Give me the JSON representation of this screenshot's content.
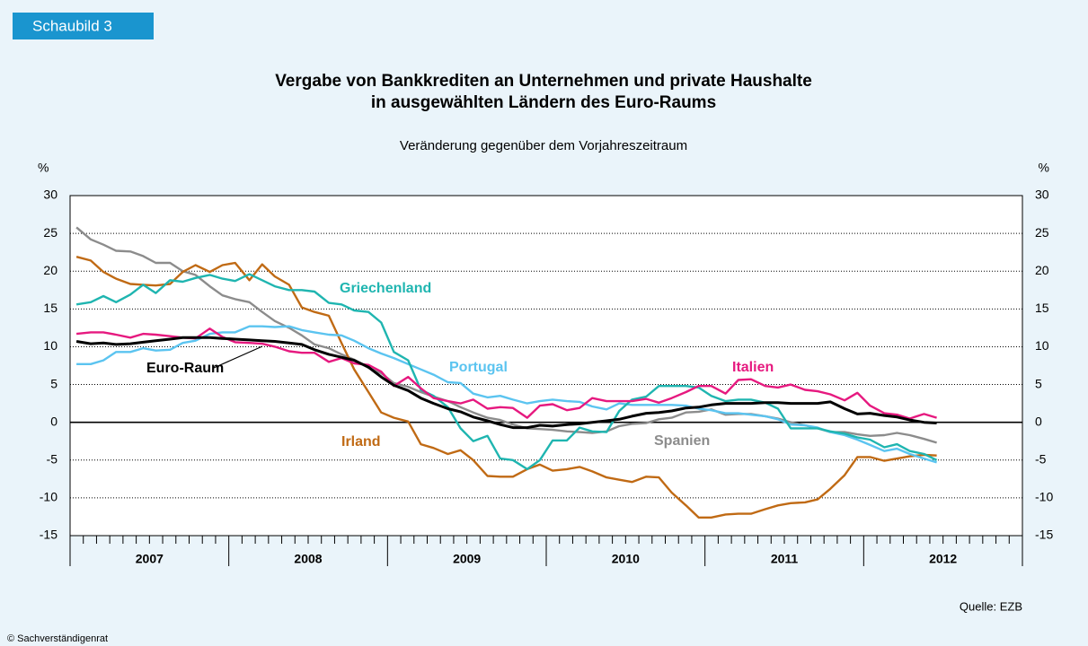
{
  "badge": "Schaubild 3",
  "chart_data": {
    "type": "line",
    "title": [
      "Vergabe von Bankkrediten an Unternehmen und private Haushalte",
      "in ausgewählten Ländern des Euro-Raums"
    ],
    "subtitle": "Veränderung gegenüber dem Vorjahreszeitraum",
    "ylabel": "%",
    "y2label": "%",
    "x": [
      2007.04,
      2007.13,
      2007.21,
      2007.29,
      2007.38,
      2007.46,
      2007.54,
      2007.63,
      2007.71,
      2007.79,
      2007.88,
      2007.96,
      2008.04,
      2008.13,
      2008.21,
      2008.29,
      2008.38,
      2008.46,
      2008.54,
      2008.63,
      2008.71,
      2008.79,
      2008.88,
      2008.96,
      2009.04,
      2009.13,
      2009.21,
      2009.29,
      2009.38,
      2009.46,
      2009.54,
      2009.63,
      2009.71,
      2009.79,
      2009.88,
      2009.96,
      2010.04,
      2010.13,
      2010.21,
      2010.29,
      2010.38,
      2010.46,
      2010.54,
      2010.63,
      2010.71,
      2010.79,
      2010.88,
      2010.96,
      2011.04,
      2011.13,
      2011.21,
      2011.29,
      2011.38,
      2011.46,
      2011.54,
      2011.63,
      2011.71,
      2011.79,
      2011.88,
      2011.96,
      2012.04,
      2012.13,
      2012.21,
      2012.29,
      2012.38,
      2012.46
    ],
    "xlim": [
      2007,
      2013
    ],
    "xticks": [
      2007,
      2008,
      2009,
      2010,
      2011,
      2012,
      2013
    ],
    "year_labels": [
      {
        "value": 2007.5,
        "label": "2007"
      },
      {
        "value": 2008.5,
        "label": "2008"
      },
      {
        "value": 2009.5,
        "label": "2009"
      },
      {
        "value": 2010.5,
        "label": "2010"
      },
      {
        "value": 2011.5,
        "label": "2011"
      },
      {
        "value": 2012.5,
        "label": "2012"
      }
    ],
    "ylim": [
      -15,
      30
    ],
    "yticks": [
      -15,
      -10,
      -5,
      0,
      5,
      10,
      15,
      20,
      25,
      30
    ],
    "y2lim": [
      -15,
      30
    ],
    "y2ticks": [
      -15,
      -10,
      -5,
      0,
      5,
      10,
      15,
      20,
      25,
      30
    ],
    "grid": true,
    "series": [
      {
        "name": "Spanien",
        "color": "#8c8c8c",
        "values": [
          25.8,
          24.2,
          23.5,
          22.7,
          22.6,
          22.0,
          21.1,
          21.1,
          20.0,
          19.5,
          18.0,
          16.8,
          16.3,
          15.9,
          14.6,
          13.4,
          12.5,
          11.5,
          10.3,
          9.8,
          9.0,
          8.3,
          7.2,
          6.5,
          5.2,
          4.7,
          4.0,
          3.4,
          2.8,
          2.0,
          1.3,
          0.6,
          0.3,
          -0.3,
          -0.8,
          -0.9,
          -1.0,
          -1.2,
          -1.3,
          -1.4,
          -1.2,
          -0.5,
          -0.2,
          -0.1,
          0.4,
          0.6,
          1.3,
          1.4,
          1.7,
          1.0,
          1.1,
          1.1,
          0.8,
          0.5,
          0.0,
          -0.4,
          -0.8,
          -1.3,
          -1.3,
          -1.6,
          -1.8,
          -1.7,
          -1.4,
          -1.7,
          -2.2,
          -2.7
        ]
      },
      {
        "name": "Irland",
        "color": "#c06a14",
        "values": [
          21.9,
          21.4,
          19.9,
          19.0,
          18.3,
          18.2,
          18.1,
          18.3,
          19.9,
          20.8,
          19.9,
          20.8,
          21.1,
          18.8,
          20.9,
          19.3,
          18.2,
          15.2,
          14.6,
          14.1,
          10.5,
          7.0,
          4.0,
          1.3,
          0.6,
          0.1,
          -2.9,
          -3.4,
          -4.2,
          -3.7,
          -5.0,
          -7.1,
          -7.2,
          -7.2,
          -6.2,
          -5.6,
          -6.4,
          -6.2,
          -5.9,
          -6.5,
          -7.3,
          -7.6,
          -7.9,
          -7.2,
          -7.3,
          -9.3,
          -11.0,
          -12.6,
          -12.6,
          -12.2,
          -12.1,
          -12.1,
          -11.5,
          -11.0,
          -10.7,
          -10.6,
          -10.2,
          -8.8,
          -7.0,
          -4.6,
          -4.6,
          -5.1,
          -4.8,
          -4.5,
          -4.3,
          -4.4
        ]
      },
      {
        "name": "Portugal",
        "color": "#5bc4f0",
        "values": [
          7.7,
          7.7,
          8.2,
          9.3,
          9.3,
          9.8,
          9.5,
          9.6,
          10.5,
          10.8,
          11.7,
          11.9,
          11.9,
          12.7,
          12.7,
          12.6,
          12.7,
          12.2,
          11.9,
          11.6,
          11.5,
          10.8,
          9.8,
          9.1,
          8.5,
          7.7,
          7.0,
          6.3,
          5.3,
          5.2,
          3.8,
          3.3,
          3.5,
          3.0,
          2.5,
          2.8,
          3.0,
          2.8,
          2.7,
          2.1,
          1.7,
          2.5,
          2.3,
          2.3,
          2.3,
          2.3,
          2.2,
          1.8,
          1.6,
          1.2,
          1.2,
          1.0,
          0.8,
          0.4,
          -0.3,
          -0.4,
          -0.7,
          -1.3,
          -1.7,
          -2.3,
          -3.0,
          -3.8,
          -3.5,
          -4.2,
          -4.8,
          -5.3
        ]
      },
      {
        "name": "Griechenland",
        "color": "#1fb5b0",
        "values": [
          15.6,
          15.9,
          16.7,
          15.9,
          16.9,
          18.2,
          17.1,
          18.8,
          18.6,
          19.1,
          19.5,
          19.0,
          18.7,
          19.6,
          18.8,
          18.0,
          17.5,
          17.5,
          17.3,
          15.8,
          15.6,
          14.8,
          14.6,
          13.2,
          9.3,
          8.2,
          4.3,
          3.5,
          2.0,
          -0.8,
          -2.5,
          -1.8,
          -4.8,
          -5.0,
          -6.2,
          -5.0,
          -2.4,
          -2.4,
          -0.7,
          -1.2,
          -1.3,
          1.5,
          3.0,
          3.4,
          4.8,
          4.8,
          4.8,
          4.6,
          3.5,
          2.8,
          3.0,
          3.0,
          2.6,
          1.8,
          -0.8,
          -0.8,
          -0.8,
          -1.2,
          -1.5,
          -2.0,
          -2.3,
          -3.3,
          -2.9,
          -3.8,
          -4.2,
          -5.0
        ]
      },
      {
        "name": "Italien",
        "color": "#e6197f",
        "values": [
          11.7,
          11.9,
          11.9,
          11.6,
          11.2,
          11.7,
          11.6,
          11.4,
          11.2,
          11.1,
          12.4,
          11.3,
          10.6,
          10.5,
          10.4,
          10.0,
          9.4,
          9.2,
          9.2,
          8.0,
          8.5,
          7.8,
          7.6,
          6.7,
          4.8,
          6.0,
          4.5,
          3.2,
          2.8,
          2.5,
          3.0,
          1.8,
          2.0,
          1.9,
          0.6,
          2.2,
          2.4,
          1.6,
          1.9,
          3.2,
          2.8,
          2.8,
          2.8,
          3.1,
          2.6,
          3.2,
          4.0,
          4.8,
          4.8,
          3.8,
          5.6,
          5.7,
          4.8,
          4.6,
          5.0,
          4.3,
          4.1,
          3.7,
          2.9,
          3.9,
          2.2,
          1.2,
          1.0,
          0.5,
          1.1,
          0.6
        ]
      },
      {
        "name": "Euro-Raum",
        "color": "#000000",
        "values": [
          10.7,
          10.4,
          10.5,
          10.3,
          10.4,
          10.6,
          10.8,
          11.0,
          11.2,
          11.2,
          11.2,
          11.1,
          11.0,
          10.9,
          10.8,
          10.7,
          10.5,
          10.3,
          9.6,
          9.0,
          8.6,
          8.2,
          7.3,
          6.0,
          4.9,
          4.2,
          3.2,
          2.5,
          1.8,
          1.4,
          0.7,
          0.2,
          -0.3,
          -0.7,
          -0.7,
          -0.4,
          -0.5,
          -0.3,
          -0.2,
          0.0,
          0.2,
          0.4,
          0.8,
          1.2,
          1.3,
          1.5,
          1.9,
          2.0,
          2.3,
          2.5,
          2.5,
          2.5,
          2.6,
          2.6,
          2.5,
          2.5,
          2.5,
          2.7,
          1.8,
          1.1,
          1.2,
          0.9,
          0.7,
          0.3,
          0.0,
          -0.1
        ]
      }
    ],
    "source": "Quelle: EZB"
  },
  "footer": "© Sachverständigenrat"
}
